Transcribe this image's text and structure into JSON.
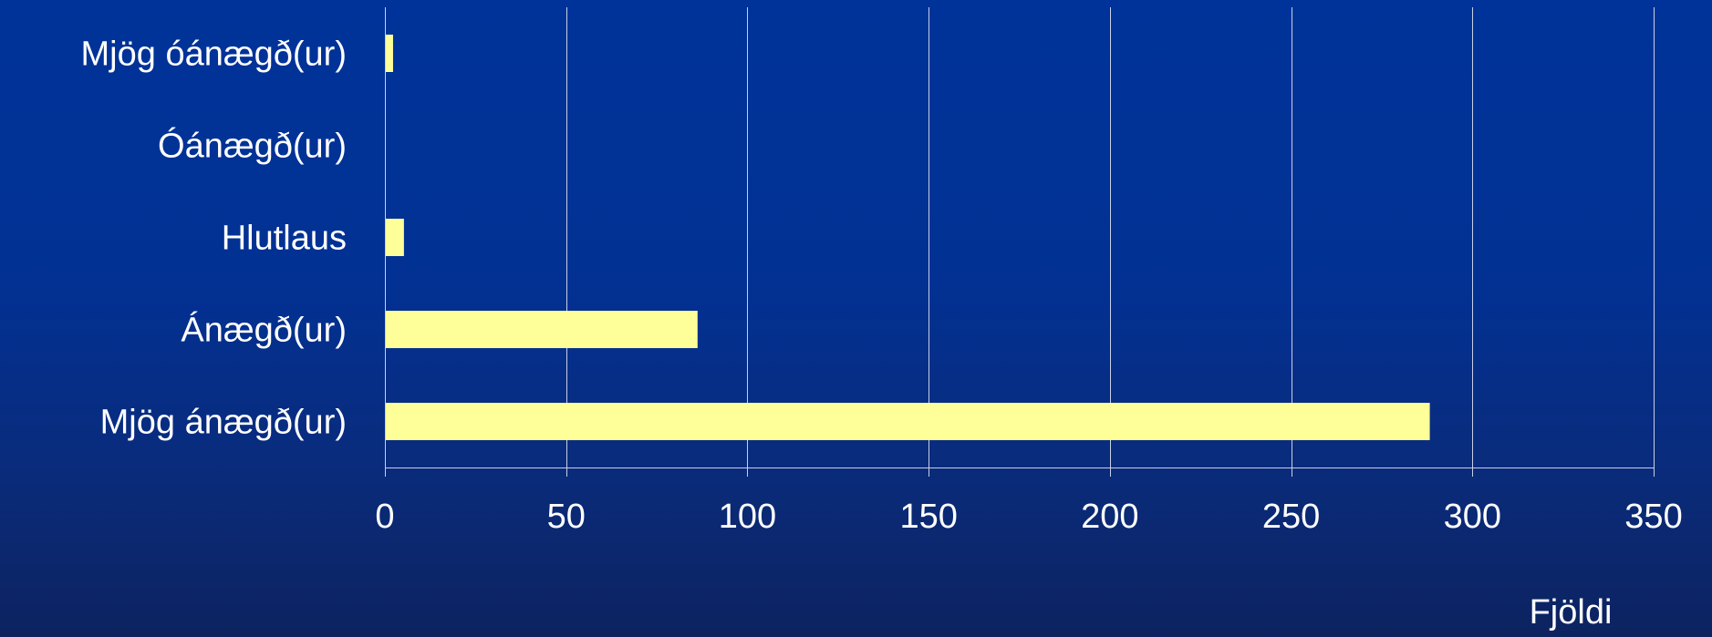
{
  "chart_data": {
    "type": "bar",
    "orientation": "horizontal",
    "categories": [
      "Mjög óánægð(ur)",
      "Óánægð(ur)",
      "Hlutlaus",
      "Ánægð(ur)",
      "Mjög ánægð(ur)"
    ],
    "values": [
      2,
      0,
      5,
      86,
      288
    ],
    "xlabel": "Fjöldi",
    "ylabel": "",
    "xlim": [
      0,
      350
    ],
    "xticks": [
      0,
      50,
      100,
      150,
      200,
      250,
      300,
      350
    ],
    "grid": "vertical",
    "bar_color": "#ffff99",
    "background_color": "#003399"
  }
}
